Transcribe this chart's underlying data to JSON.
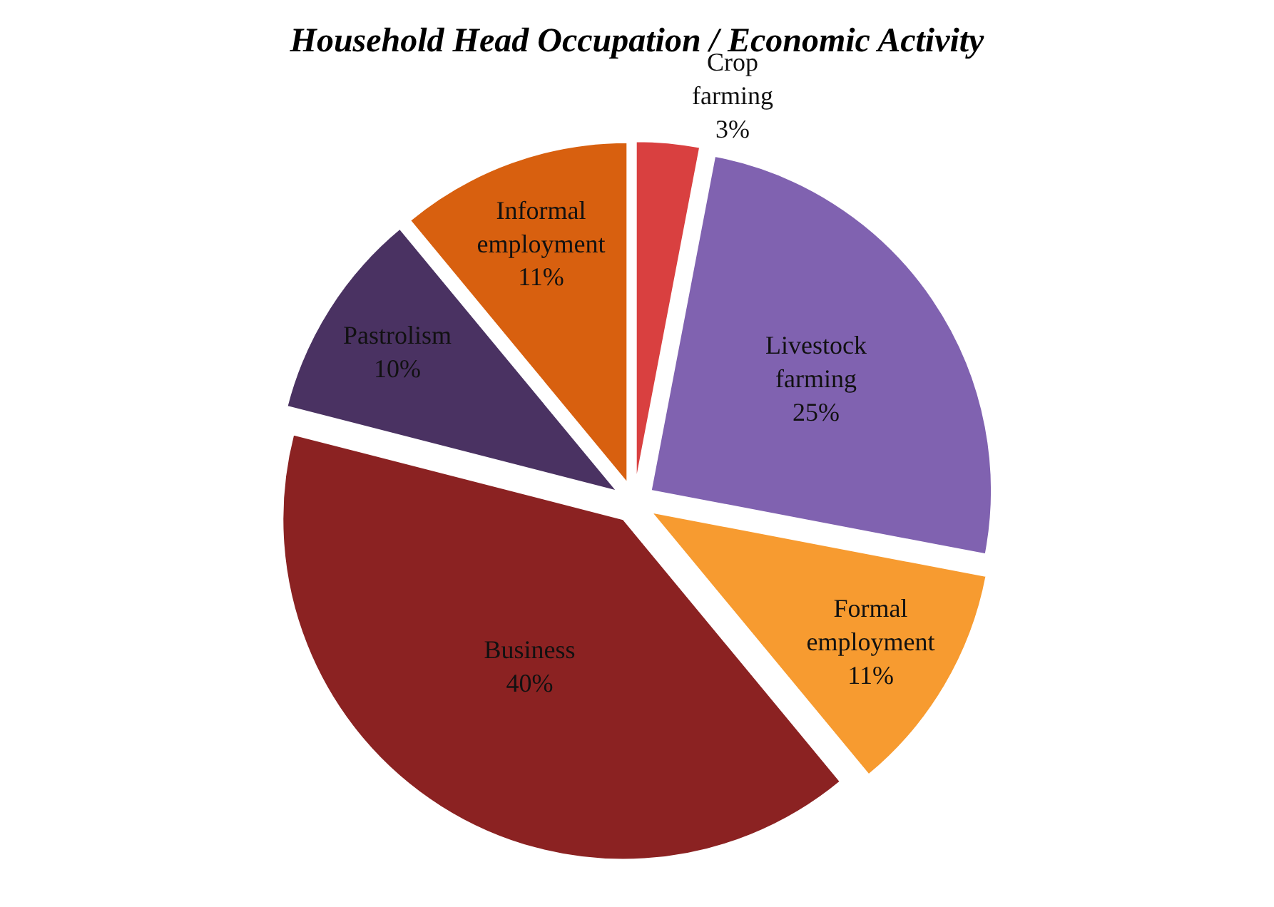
{
  "chart_data": {
    "type": "pie",
    "title": "Household Head Occupation / Economic Activity",
    "categories": [
      "Crop farming",
      "Livestock farming",
      "Formal employment",
      "Business",
      "Pastrolism",
      "Informal employment"
    ],
    "values": [
      3,
      25,
      11,
      40,
      10,
      11
    ],
    "colors": [
      "#d94040",
      "#8062b0",
      "#f79b30",
      "#8b2222",
      "#4a3262",
      "#d8600f"
    ],
    "value_labels": [
      "3%",
      "25%",
      "11%",
      "40%",
      "10%",
      "11%"
    ],
    "legend": false
  }
}
